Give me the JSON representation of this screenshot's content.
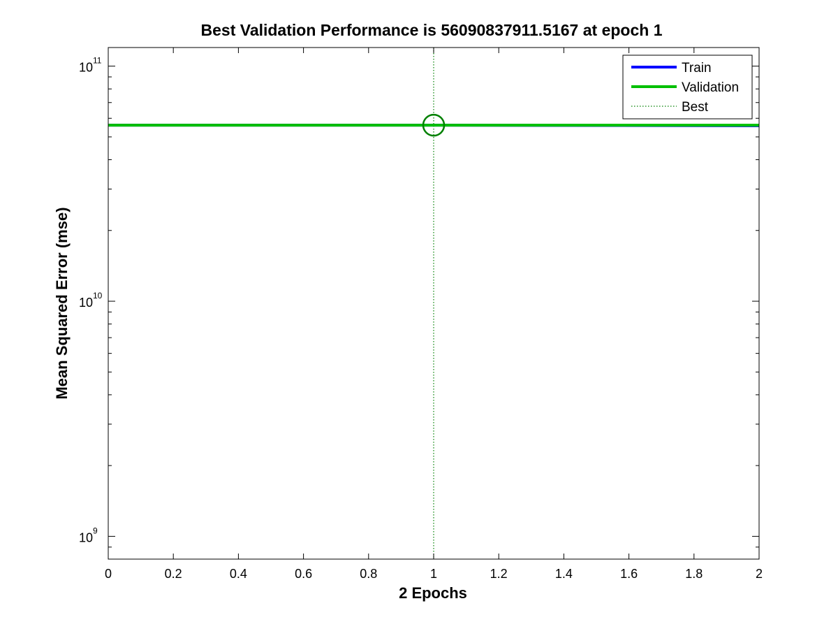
{
  "chart_data": {
    "type": "line",
    "title": "Best Validation Performance is 56090837911.5167 at epoch 1",
    "xlabel": "2 Epochs",
    "ylabel": "Mean Squared Error  (mse)",
    "xlim": [
      0,
      2
    ],
    "ylim": [
      800000000,
      120000000000
    ],
    "yscale": "log",
    "xticks": [
      "0",
      "0.2",
      "0.4",
      "0.6",
      "0.8",
      "1",
      "1.2",
      "1.4",
      "1.6",
      "1.8",
      "2"
    ],
    "xtick_values": [
      0,
      0.2,
      0.4,
      0.6,
      0.8,
      1,
      1.2,
      1.4,
      1.6,
      1.8,
      2
    ],
    "yticks": [
      {
        "base": "10",
        "exp": "9",
        "value": 1000000000
      },
      {
        "base": "10",
        "exp": "10",
        "value": 10000000000
      },
      {
        "base": "10",
        "exp": "11",
        "value": 100000000000
      }
    ],
    "grid": false,
    "legend_position": "top-right",
    "series": [
      {
        "name": "Train",
        "color": "#0000ff",
        "x": [
          0,
          1,
          2
        ],
        "y": [
          56090837911.5167,
          56090837911.5167,
          55800000000
        ]
      },
      {
        "name": "Validation",
        "color": "#00bf00",
        "x": [
          0,
          1,
          2
        ],
        "y": [
          56090837911.5167,
          56090837911.5167,
          56090837911.5167
        ]
      }
    ],
    "best": {
      "name": "Best",
      "color": "#008000",
      "epoch": 1,
      "value": 56090837911.5167
    }
  }
}
